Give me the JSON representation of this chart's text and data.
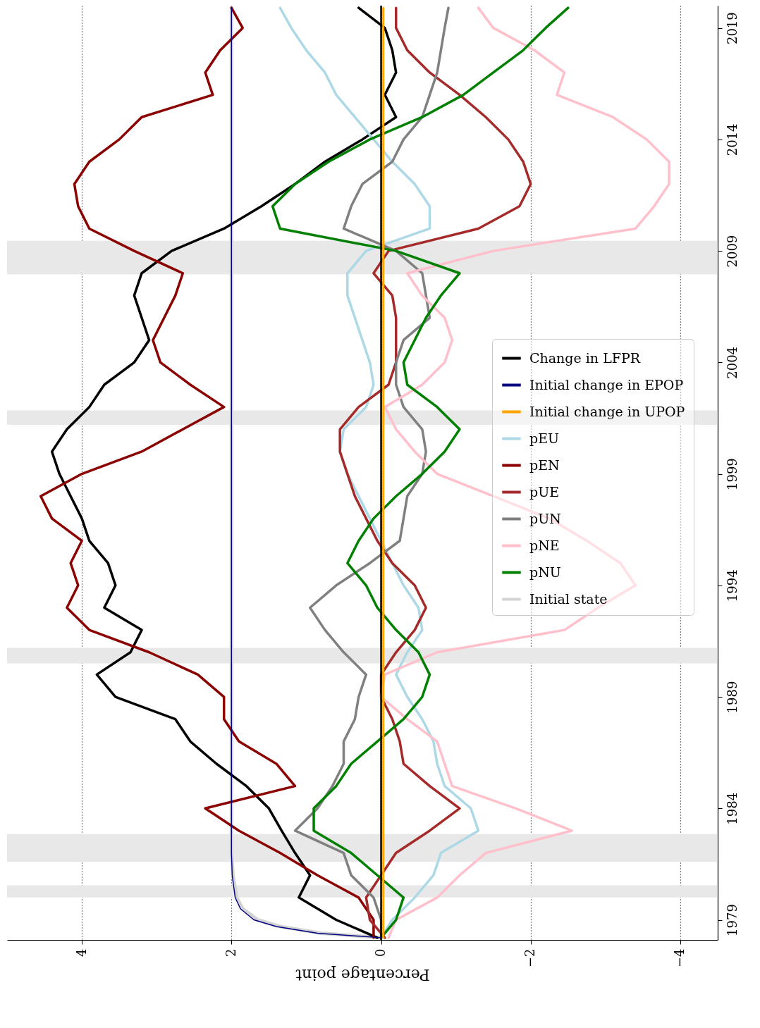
{
  "chart_data": {
    "type": "line",
    "orientation": "horizontal",
    "xlabel": "Percentage point",
    "legend": "right",
    "grid": "x",
    "ylim": [
      1978.1,
      2020.0
    ],
    "yticks": [
      1979,
      1984,
      1989,
      1994,
      1999,
      2004,
      2009,
      2014,
      2019
    ],
    "xlim": [
      5.0,
      -4.5
    ],
    "xticks": [
      4,
      2,
      0,
      -2,
      -4
    ],
    "x": [
      1978.2,
      1979,
      1980,
      1981,
      1982,
      1983,
      1984,
      1985,
      1986,
      1987,
      1988,
      1989,
      1990,
      1991,
      1992,
      1993,
      1994,
      1995,
      1996,
      1997,
      1998,
      1999,
      2000,
      2001,
      2002,
      2003,
      2004,
      2005,
      2006,
      2007,
      2008,
      2009,
      2010,
      2011,
      2012,
      2013,
      2014,
      2015,
      2016,
      2017,
      2018,
      2019,
      2019.9
    ],
    "bands": [
      {
        "axis": "y",
        "from": 1980.0,
        "to": 1980.55,
        "color": "#e8e8e8"
      },
      {
        "axis": "y",
        "from": 1981.6,
        "to": 1982.85,
        "color": "#e8e8e8"
      },
      {
        "axis": "y",
        "from": 1990.5,
        "to": 1991.2,
        "color": "#e8e8e8"
      },
      {
        "axis": "y",
        "from": 2001.2,
        "to": 2001.85,
        "color": "#e8e8e8"
      },
      {
        "axis": "y",
        "from": 2007.95,
        "to": 2009.45,
        "color": "#e8e8e8"
      }
    ],
    "ref_lines": [
      {
        "axis": "x",
        "value": 0,
        "color": "#000000"
      }
    ],
    "series": [
      {
        "name": "Change in LFPR",
        "color": "#000000",
        "values": [
          0.05,
          0.6,
          1.1,
          0.95,
          1.15,
          1.33,
          1.5,
          1.8,
          2.2,
          2.55,
          2.75,
          3.55,
          3.8,
          3.35,
          3.2,
          3.7,
          3.55,
          3.65,
          3.9,
          4.0,
          4.15,
          4.3,
          4.4,
          4.2,
          3.9,
          3.7,
          3.3,
          3.1,
          3.2,
          3.3,
          3.2,
          2.8,
          2.1,
          1.6,
          1.15,
          0.75,
          0.25,
          -0.2,
          -0.05,
          -0.2,
          -0.15,
          -0.05,
          0.3
        ]
      },
      {
        "name": "Initial change in EPOP",
        "color": "#000080",
        "x": [
          1978.2,
          1978.4,
          1978.7,
          1979,
          1979.5,
          1980,
          1981,
          1982,
          1985,
          2019.9
        ],
        "values": [
          0,
          0.85,
          1.4,
          1.7,
          1.88,
          1.95,
          1.99,
          2.0,
          2.0,
          2.0
        ]
      },
      {
        "name": "Initial change in UPOP",
        "color": "#ffa500",
        "x": [
          1978.2,
          2019.9
        ],
        "values": [
          -0.03,
          -0.03
        ]
      },
      {
        "name": "pEU",
        "color": "#add8e6",
        "values": [
          0,
          -0.15,
          -0.45,
          -0.7,
          -0.8,
          -1.3,
          -1.2,
          -0.85,
          -0.75,
          -0.7,
          -0.55,
          -0.35,
          -0.2,
          -0.35,
          -0.55,
          -0.5,
          -0.3,
          -0.15,
          0,
          0.15,
          0.3,
          0.45,
          0.55,
          0.5,
          0.2,
          0.1,
          0.15,
          0.25,
          0.35,
          0.45,
          0.45,
          0.2,
          -0.65,
          -0.65,
          -0.45,
          -0.15,
          0.1,
          0.35,
          0.6,
          0.75,
          1.0,
          1.2,
          1.35
        ]
      },
      {
        "name": "pEN",
        "color": "#8b0000",
        "values": [
          0.1,
          0.1,
          0.3,
          0.85,
          1.35,
          1.9,
          2.35,
          1.15,
          1.4,
          1.9,
          2.1,
          2.1,
          2.45,
          3.1,
          3.9,
          4.2,
          4.05,
          4.15,
          4.0,
          4.4,
          4.55,
          4.0,
          3.2,
          2.65,
          2.1,
          2.55,
          2.95,
          3.05,
          2.9,
          2.75,
          2.65,
          3.3,
          3.9,
          4.05,
          4.1,
          3.9,
          3.5,
          3.2,
          2.25,
          2.35,
          2.15,
          1.85,
          2.0
        ]
      },
      {
        "name": "pUE",
        "color": "#a52a2a",
        "values": [
          -0.05,
          0.15,
          0.2,
          0,
          -0.2,
          -0.65,
          -1.05,
          -0.65,
          -0.3,
          -0.25,
          -0.15,
          0,
          0,
          -0.2,
          -0.45,
          -0.6,
          -0.45,
          -0.15,
          0.05,
          0.2,
          0.35,
          0.45,
          0.55,
          0.55,
          0.3,
          -0.1,
          -0.2,
          -0.2,
          -0.2,
          -0.15,
          0.1,
          -0.1,
          -1.3,
          -1.85,
          -2.0,
          -1.9,
          -1.7,
          -1.4,
          -1.05,
          -0.65,
          -0.35,
          -0.2,
          -0.2
        ]
      },
      {
        "name": "pUN",
        "color": "#808080",
        "values": [
          0,
          0,
          0.1,
          0.4,
          0.5,
          1.15,
          0.85,
          0.65,
          0.5,
          0.5,
          0.35,
          0.3,
          0.2,
          0.5,
          0.75,
          0.95,
          0.6,
          0.15,
          -0.25,
          -0.3,
          -0.35,
          -0.55,
          -0.6,
          -0.55,
          -0.3,
          -0.2,
          -0.2,
          -0.3,
          -0.65,
          -0.6,
          -0.55,
          -0.2,
          0.5,
          0.4,
          0.25,
          -0.15,
          -0.3,
          -0.55,
          -0.65,
          -0.75,
          -0.8,
          -0.85,
          -0.9
        ]
      },
      {
        "name": "pNE",
        "color": "#ffc0cb",
        "values": [
          -0.1,
          -0.2,
          -0.75,
          -1.05,
          -1.4,
          -2.55,
          -1.8,
          -0.95,
          -0.85,
          -0.75,
          -0.35,
          0,
          -0.05,
          -0.75,
          -2.45,
          -2.9,
          -3.4,
          -3.2,
          -2.75,
          -2.25,
          -1.5,
          -0.75,
          -0.45,
          -0.2,
          -0.05,
          -0.55,
          -0.85,
          -0.95,
          -0.85,
          -0.55,
          -0.35,
          -1.5,
          -3.4,
          -3.65,
          -3.85,
          -3.85,
          -3.55,
          -3.1,
          -2.35,
          -2.45,
          -2.05,
          -1.5,
          -1.3
        ]
      },
      {
        "name": "pNU",
        "color": "#008000",
        "values": [
          0,
          -0.2,
          -0.3,
          0.05,
          0.4,
          0.9,
          0.9,
          0.6,
          0.4,
          0.05,
          -0.3,
          -0.55,
          -0.65,
          -0.5,
          -0.2,
          0.05,
          0.2,
          0.45,
          0.3,
          0.1,
          -0.2,
          -0.55,
          -0.85,
          -1.05,
          -0.75,
          -0.35,
          -0.3,
          -0.45,
          -0.6,
          -0.8,
          -1.05,
          -0.2,
          1.35,
          1.45,
          1.15,
          0.7,
          0.15,
          -0.55,
          -1.1,
          -1.5,
          -1.9,
          -2.2,
          -2.5
        ]
      },
      {
        "name": "Initial state",
        "color": "#d3d3d3",
        "x": [
          1978.2,
          1978.4,
          1978.7,
          1979,
          1979.5,
          1980,
          1981,
          1982,
          1985,
          2019.9
        ],
        "values": [
          0,
          0.8,
          1.35,
          1.65,
          1.85,
          1.93,
          1.98,
          2.0,
          2.0,
          2.0
        ]
      }
    ]
  }
}
